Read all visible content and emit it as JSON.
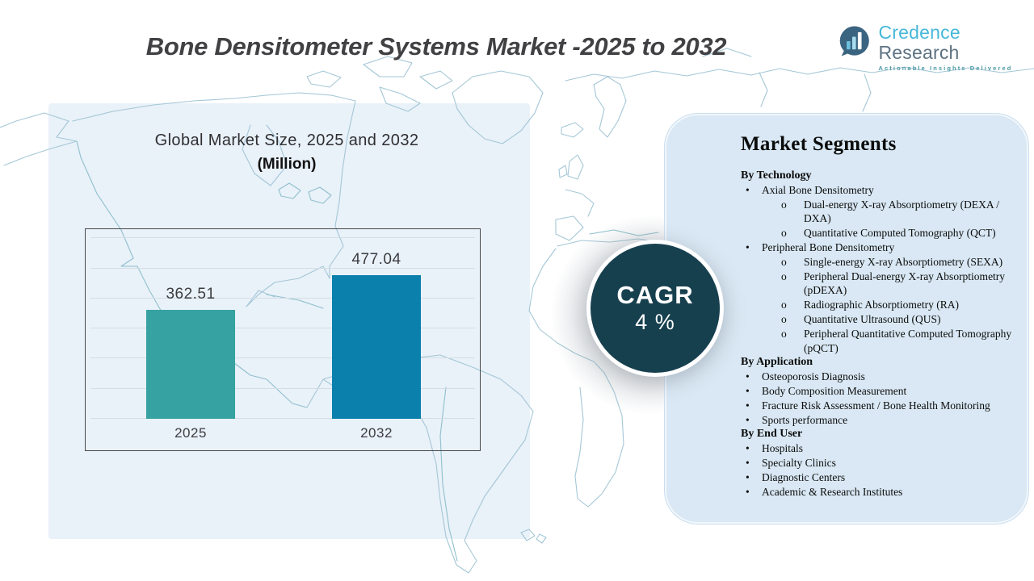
{
  "header": {
    "title": "Bone Densitometer Systems Market -2025 to 2032"
  },
  "logo": {
    "name_primary": "Credence",
    "name_secondary": "Research",
    "tagline": "Actionable Insights Delivered",
    "mark": "bar-chart-bubble-icon",
    "colors": {
      "primary": "#47b8da",
      "secondary": "#5d7282",
      "mark": "#3a6480"
    }
  },
  "chart_data": {
    "type": "bar",
    "title": "Global Market Size, 2025 and 2032",
    "subtitle": "(Million)",
    "categories": [
      "2025",
      "2032"
    ],
    "values": [
      362.51,
      477.04
    ],
    "value_labels": [
      "362.51",
      "477.04"
    ],
    "bar_colors": [
      "#36a2a1",
      "#0c80ad"
    ],
    "ylabel": "",
    "xlabel": "",
    "ylim": [
      0,
      600
    ],
    "grid": "horizontal",
    "legend_position": "none"
  },
  "cagr": {
    "label": "CAGR",
    "value": "4 %",
    "bg_color": "#17404f"
  },
  "segments": {
    "title": "Market Segments",
    "bullet_level1": "•",
    "bullet_level2": "o",
    "sections": [
      {
        "heading": "By Technology",
        "items": [
          {
            "level": 1,
            "text": "Axial Bone Densitometry"
          },
          {
            "level": 2,
            "text": "Dual-energy X-ray Absorptiometry (DEXA / DXA)"
          },
          {
            "level": 2,
            "text": "Quantitative Computed Tomography (QCT)"
          },
          {
            "level": 1,
            "text": "Peripheral Bone Densitometry"
          },
          {
            "level": 2,
            "text": "Single-energy X-ray Absorptiometry (SEXA)"
          },
          {
            "level": 2,
            "text": "Peripheral Dual-energy X-ray Absorptiometry (pDEXA)"
          },
          {
            "level": 2,
            "text": "Radiographic Absorptiometry (RA)"
          },
          {
            "level": 2,
            "text": "Quantitative Ultrasound (QUS)"
          },
          {
            "level": 2,
            "text": "Peripheral Quantitative Computed Tomography (pQCT)"
          }
        ]
      },
      {
        "heading": "By Application",
        "items": [
          {
            "level": 1,
            "text": "Osteoporosis Diagnosis"
          },
          {
            "level": 1,
            "text": "Body Composition  Measurement"
          },
          {
            "level": 1,
            "text": "Fracture Risk Assessment / Bone Health Monitoring"
          },
          {
            "level": 1,
            "text": "Sports performance"
          }
        ]
      },
      {
        "heading": "By End User",
        "items": [
          {
            "level": 1,
            "text": "Hospitals"
          },
          {
            "level": 1,
            "text": "Specialty Clinics"
          },
          {
            "level": 1,
            "text": "Diagnostic Centers"
          },
          {
            "level": 1,
            "text": "Academic & Research Institutes"
          }
        ]
      }
    ]
  }
}
